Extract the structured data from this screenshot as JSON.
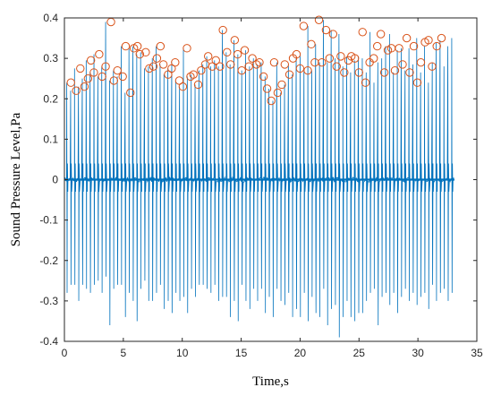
{
  "chart_data": {
    "type": "line",
    "title": "",
    "xlabel": "Time,s",
    "ylabel": "Sound Pressure Level,Pa",
    "xlim": [
      0,
      35
    ],
    "ylim": [
      -0.4,
      0.4
    ],
    "xticks": [
      0,
      5,
      10,
      15,
      20,
      25,
      30,
      35
    ],
    "yticks": [
      -0.4,
      -0.3,
      -0.2,
      -0.1,
      0,
      0.1,
      0.2,
      0.3,
      0.4
    ],
    "xtick_labels": [
      "0",
      "5",
      "10",
      "15",
      "20",
      "25",
      "30",
      "35"
    ],
    "ytick_labels": [
      "-0.4",
      "-0.3",
      "-0.2",
      "-0.1",
      "0",
      "0.1",
      "0.2",
      "0.3",
      "0.4"
    ],
    "grid": false,
    "box": true,
    "series": [
      {
        "kind": "signal",
        "color": "#0072BD",
        "x_start": 0,
        "x_end": 33.1,
        "pulse_interval": 0.33,
        "baseline_noise_amplitude": 0.006,
        "pulse_positive_peaks": [
          0.24,
          0.22,
          0.275,
          0.23,
          0.25,
          0.295,
          0.265,
          0.31,
          0.255,
          0.28,
          0.39,
          0.245,
          0.27,
          0.255,
          0.33,
          0.215,
          0.325,
          0.33,
          0.31,
          0.315,
          0.275,
          0.28,
          0.3,
          0.33,
          0.285,
          0.26,
          0.275,
          0.29,
          0.245,
          0.23,
          0.325,
          0.255,
          0.26,
          0.235,
          0.27,
          0.285,
          0.305,
          0.28,
          0.295,
          0.28,
          0.37,
          0.315,
          0.285,
          0.345,
          0.31,
          0.27,
          0.32,
          0.28,
          0.3,
          0.285,
          0.29,
          0.255,
          0.225,
          0.195,
          0.29,
          0.215,
          0.235,
          0.285,
          0.26,
          0.3,
          0.31,
          0.275,
          0.38,
          0.27,
          0.335,
          0.29,
          0.395,
          0.29,
          0.37,
          0.3,
          0.36,
          0.28,
          0.305,
          0.265,
          0.295,
          0.305,
          0.3,
          0.265,
          0.365,
          0.24,
          0.29,
          0.3,
          0.33,
          0.36,
          0.265,
          0.32,
          0.325,
          0.27,
          0.325,
          0.285,
          0.35,
          0.265,
          0.33,
          0.24,
          0.29,
          0.34,
          0.345,
          0.28,
          0.33,
          0.35
        ],
        "pulse_negative_peaks": [
          -0.28,
          -0.26,
          -0.26,
          -0.3,
          -0.26,
          -0.27,
          -0.28,
          -0.26,
          -0.25,
          -0.28,
          -0.24,
          -0.36,
          -0.27,
          -0.26,
          -0.26,
          -0.34,
          -0.28,
          -0.3,
          -0.35,
          -0.27,
          -0.25,
          -0.3,
          -0.3,
          -0.28,
          -0.26,
          -0.32,
          -0.3,
          -0.33,
          -0.28,
          -0.3,
          -0.29,
          -0.33,
          -0.27,
          -0.29,
          -0.26,
          -0.26,
          -0.27,
          -0.28,
          -0.26,
          -0.3,
          -0.29,
          -0.29,
          -0.34,
          -0.3,
          -0.35,
          -0.26,
          -0.3,
          -0.32,
          -0.27,
          -0.3,
          -0.27,
          -0.33,
          -0.29,
          -0.34,
          -0.27,
          -0.3,
          -0.31,
          -0.28,
          -0.34,
          -0.32,
          -0.34,
          -0.28,
          -0.35,
          -0.29,
          -0.33,
          -0.34,
          -0.27,
          -0.36,
          -0.32,
          -0.31,
          -0.39,
          -0.34,
          -0.3,
          -0.34,
          -0.35,
          -0.33,
          -0.33,
          -0.3,
          -0.28,
          -0.27,
          -0.36,
          -0.29,
          -0.28,
          -0.31,
          -0.28,
          -0.33,
          -0.29,
          -0.27,
          -0.3,
          -0.28,
          -0.31,
          -0.29,
          -0.28,
          -0.32,
          -0.26,
          -0.3,
          -0.28,
          -0.27,
          -0.3,
          -0.28
        ]
      },
      {
        "kind": "peak-markers",
        "marker": "circle",
        "color": "#D95319",
        "points": [
          [
            0.55,
            0.24
          ],
          [
            1.0,
            0.22
          ],
          [
            1.35,
            0.275
          ],
          [
            1.7,
            0.23
          ],
          [
            2.0,
            0.25
          ],
          [
            2.25,
            0.295
          ],
          [
            2.5,
            0.265
          ],
          [
            2.95,
            0.31
          ],
          [
            3.2,
            0.255
          ],
          [
            3.5,
            0.28
          ],
          [
            3.95,
            0.39
          ],
          [
            4.2,
            0.245
          ],
          [
            4.5,
            0.27
          ],
          [
            4.95,
            0.255
          ],
          [
            5.2,
            0.33
          ],
          [
            5.6,
            0.215
          ],
          [
            5.9,
            0.325
          ],
          [
            6.2,
            0.33
          ],
          [
            6.4,
            0.31
          ],
          [
            6.9,
            0.315
          ],
          [
            7.2,
            0.275
          ],
          [
            7.55,
            0.28
          ],
          [
            7.85,
            0.3
          ],
          [
            8.15,
            0.33
          ],
          [
            8.4,
            0.285
          ],
          [
            8.8,
            0.26
          ],
          [
            9.1,
            0.275
          ],
          [
            9.4,
            0.29
          ],
          [
            9.75,
            0.245
          ],
          [
            10.05,
            0.23
          ],
          [
            10.4,
            0.325
          ],
          [
            10.7,
            0.255
          ],
          [
            10.95,
            0.26
          ],
          [
            11.35,
            0.235
          ],
          [
            11.6,
            0.27
          ],
          [
            11.95,
            0.285
          ],
          [
            12.2,
            0.305
          ],
          [
            12.55,
            0.28
          ],
          [
            12.85,
            0.295
          ],
          [
            13.2,
            0.28
          ],
          [
            13.45,
            0.37
          ],
          [
            13.8,
            0.315
          ],
          [
            14.1,
            0.285
          ],
          [
            14.45,
            0.345
          ],
          [
            14.7,
            0.31
          ],
          [
            15.05,
            0.27
          ],
          [
            15.3,
            0.32
          ],
          [
            15.65,
            0.28
          ],
          [
            15.95,
            0.3
          ],
          [
            16.3,
            0.285
          ],
          [
            16.55,
            0.29
          ],
          [
            16.9,
            0.255
          ],
          [
            17.2,
            0.225
          ],
          [
            17.55,
            0.195
          ],
          [
            17.8,
            0.29
          ],
          [
            18.1,
            0.215
          ],
          [
            18.45,
            0.235
          ],
          [
            18.7,
            0.285
          ],
          [
            19.1,
            0.26
          ],
          [
            19.4,
            0.3
          ],
          [
            19.7,
            0.31
          ],
          [
            20.0,
            0.275
          ],
          [
            20.3,
            0.38
          ],
          [
            20.65,
            0.27
          ],
          [
            20.95,
            0.335
          ],
          [
            21.25,
            0.29
          ],
          [
            21.6,
            0.395
          ],
          [
            21.85,
            0.29
          ],
          [
            22.2,
            0.37
          ],
          [
            22.5,
            0.3
          ],
          [
            22.8,
            0.36
          ],
          [
            23.1,
            0.28
          ],
          [
            23.45,
            0.305
          ],
          [
            23.75,
            0.265
          ],
          [
            24.1,
            0.295
          ],
          [
            24.35,
            0.305
          ],
          [
            24.65,
            0.3
          ],
          [
            25.0,
            0.265
          ],
          [
            25.3,
            0.365
          ],
          [
            25.55,
            0.24
          ],
          [
            25.9,
            0.29
          ],
          [
            26.25,
            0.3
          ],
          [
            26.55,
            0.33
          ],
          [
            26.85,
            0.36
          ],
          [
            27.15,
            0.265
          ],
          [
            27.45,
            0.32
          ],
          [
            27.75,
            0.325
          ],
          [
            28.05,
            0.27
          ],
          [
            28.4,
            0.325
          ],
          [
            28.7,
            0.285
          ],
          [
            29.05,
            0.35
          ],
          [
            29.3,
            0.265
          ],
          [
            29.65,
            0.33
          ],
          [
            29.95,
            0.24
          ],
          [
            30.25,
            0.29
          ],
          [
            30.6,
            0.34
          ],
          [
            30.9,
            0.345
          ],
          [
            31.2,
            0.28
          ],
          [
            31.6,
            0.33
          ],
          [
            32.0,
            0.35
          ]
        ]
      }
    ]
  }
}
